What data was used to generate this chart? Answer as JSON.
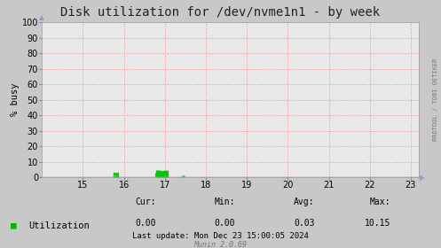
{
  "title": "Disk utilization for /dev/nvme1n1 - by week",
  "ylabel": "% busy",
  "background_color": "#c8c8c8",
  "plot_bg_color": "#e8e8e8",
  "grid_color": "#ff8888",
  "line_color": "#00cc00",
  "fill_color": "#00cc00",
  "xlim": [
    14.0,
    23.2
  ],
  "ylim": [
    0,
    100
  ],
  "xticks": [
    15,
    16,
    17,
    18,
    19,
    20,
    21,
    22,
    23
  ],
  "yticks": [
    0,
    10,
    20,
    30,
    40,
    50,
    60,
    70,
    80,
    90,
    100
  ],
  "legend_label": "Utilization",
  "legend_color": "#00bb00",
  "cur_label": "Cur:",
  "min_label": "Min:",
  "avg_label": "Avg:",
  "max_label": "Max:",
  "cur_val": "0.00",
  "min_val": "0.00",
  "avg_val": "0.03",
  "max_val": "10.15",
  "last_update": "Last update: Mon Dec 23 15:00:05 2024",
  "munin_version": "Munin 2.0.69",
  "watermark": "RRDTOOL / TOBI OETIKER",
  "title_fontsize": 10,
  "label_fontsize": 7.5,
  "tick_fontsize": 7,
  "stats_fontsize": 7,
  "legend_fontsize": 7.5,
  "watermark_fontsize": 5,
  "lastupdate_fontsize": 6.5,
  "munin_fontsize": 6
}
